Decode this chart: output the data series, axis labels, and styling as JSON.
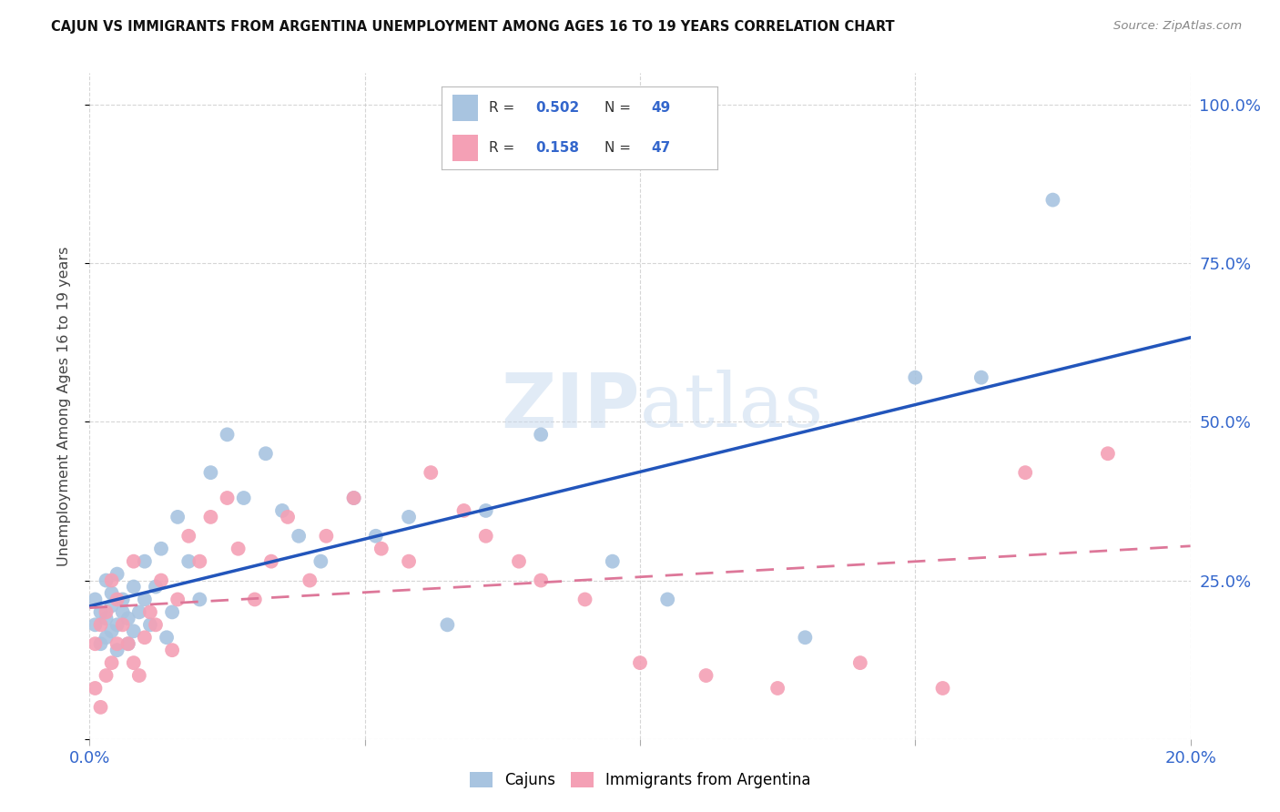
{
  "title": "CAJUN VS IMMIGRANTS FROM ARGENTINA UNEMPLOYMENT AMONG AGES 16 TO 19 YEARS CORRELATION CHART",
  "source": "Source: ZipAtlas.com",
  "ylabel": "Unemployment Among Ages 16 to 19 years",
  "xlim": [
    0.0,
    0.2
  ],
  "ylim": [
    0.0,
    1.05
  ],
  "x_ticks": [
    0.0,
    0.05,
    0.1,
    0.15,
    0.2
  ],
  "x_tick_labels": [
    "0.0%",
    "",
    "",
    "",
    "20.0%"
  ],
  "y_ticks": [
    0.0,
    0.25,
    0.5,
    0.75,
    1.0
  ],
  "y_tick_labels_right": [
    "",
    "25.0%",
    "50.0%",
    "75.0%",
    "100.0%"
  ],
  "cajun_R": 0.502,
  "cajun_N": 49,
  "argentina_R": 0.158,
  "argentina_N": 47,
  "cajun_color": "#a8c4e0",
  "argentina_color": "#f4a0b5",
  "cajun_line_color": "#2255bb",
  "argentina_line_color": "#dd7799",
  "cajun_x": [
    0.001,
    0.001,
    0.002,
    0.002,
    0.003,
    0.003,
    0.003,
    0.004,
    0.004,
    0.004,
    0.005,
    0.005,
    0.005,
    0.006,
    0.006,
    0.007,
    0.007,
    0.008,
    0.008,
    0.009,
    0.01,
    0.01,
    0.011,
    0.012,
    0.013,
    0.014,
    0.015,
    0.016,
    0.018,
    0.02,
    0.022,
    0.025,
    0.028,
    0.032,
    0.035,
    0.038,
    0.042,
    0.048,
    0.052,
    0.058,
    0.065,
    0.072,
    0.082,
    0.095,
    0.105,
    0.13,
    0.15,
    0.162,
    0.175
  ],
  "cajun_y": [
    0.18,
    0.22,
    0.2,
    0.15,
    0.25,
    0.16,
    0.19,
    0.17,
    0.21,
    0.23,
    0.14,
    0.18,
    0.26,
    0.2,
    0.22,
    0.15,
    0.19,
    0.17,
    0.24,
    0.2,
    0.22,
    0.28,
    0.18,
    0.24,
    0.3,
    0.16,
    0.2,
    0.35,
    0.28,
    0.22,
    0.42,
    0.48,
    0.38,
    0.45,
    0.36,
    0.32,
    0.28,
    0.38,
    0.32,
    0.35,
    0.18,
    0.36,
    0.48,
    0.28,
    0.22,
    0.16,
    0.57,
    0.57,
    0.85
  ],
  "argentina_x": [
    0.001,
    0.001,
    0.002,
    0.002,
    0.003,
    0.003,
    0.004,
    0.004,
    0.005,
    0.005,
    0.006,
    0.007,
    0.008,
    0.008,
    0.009,
    0.01,
    0.011,
    0.012,
    0.013,
    0.015,
    0.016,
    0.018,
    0.02,
    0.022,
    0.025,
    0.027,
    0.03,
    0.033,
    0.036,
    0.04,
    0.043,
    0.048,
    0.053,
    0.058,
    0.062,
    0.068,
    0.072,
    0.078,
    0.082,
    0.09,
    0.1,
    0.112,
    0.125,
    0.14,
    0.155,
    0.17,
    0.185
  ],
  "argentina_y": [
    0.15,
    0.08,
    0.18,
    0.05,
    0.2,
    0.1,
    0.25,
    0.12,
    0.15,
    0.22,
    0.18,
    0.15,
    0.12,
    0.28,
    0.1,
    0.16,
    0.2,
    0.18,
    0.25,
    0.14,
    0.22,
    0.32,
    0.28,
    0.35,
    0.38,
    0.3,
    0.22,
    0.28,
    0.35,
    0.25,
    0.32,
    0.38,
    0.3,
    0.28,
    0.42,
    0.36,
    0.32,
    0.28,
    0.25,
    0.22,
    0.12,
    0.1,
    0.08,
    0.12,
    0.08,
    0.42,
    0.45
  ],
  "grid_color": "#cccccc",
  "tick_label_color": "#3366cc"
}
